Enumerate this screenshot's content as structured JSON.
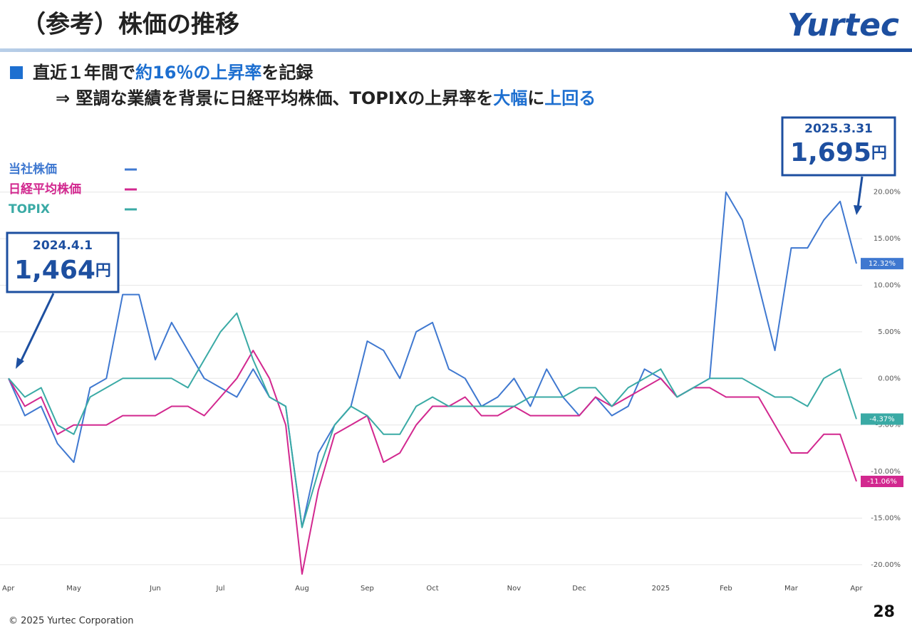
{
  "header": {
    "title": "（参考）株価の推移",
    "logo": "Yurtec"
  },
  "headline": {
    "parts": [
      "直近１年間で",
      "約16％の上昇率",
      "を記録"
    ]
  },
  "subline": {
    "parts": [
      "⇒ 堅調な業績を背景に日経平均株価、TOPIXの上昇率を",
      "大幅",
      "に",
      "上回る"
    ]
  },
  "callouts": [
    {
      "date": "2024.4.1",
      "price": "1,464",
      "unit": "円"
    },
    {
      "date": "2025.3.31",
      "price": "1,695",
      "unit": "円"
    }
  ],
  "footer": {
    "copyright": "© 2025 Yurtec Corporation",
    "page": "28"
  },
  "chart_data": {
    "type": "line",
    "categories": [
      "Apr",
      null,
      null,
      null,
      "May",
      null,
      null,
      null,
      null,
      "Jun",
      null,
      null,
      null,
      "Jul",
      null,
      null,
      null,
      null,
      "Aug",
      null,
      null,
      null,
      "Sep",
      null,
      null,
      null,
      "Oct",
      null,
      null,
      null,
      null,
      "Nov",
      null,
      null,
      null,
      "Dec",
      null,
      null,
      null,
      null,
      "2025",
      null,
      null,
      null,
      "Feb",
      null,
      null,
      null,
      "Mar",
      null,
      null,
      null,
      "Apr"
    ],
    "series": [
      {
        "name": "当社株価",
        "color": "#3f78d0",
        "last_label": "12.32%",
        "values": [
          0,
          -4,
          -3,
          -7,
          -9,
          -1,
          0,
          9,
          9,
          2,
          6,
          3,
          0,
          -1,
          -2,
          1,
          -2,
          -3,
          -16,
          -8,
          -5,
          -3,
          4,
          3,
          0,
          5,
          6,
          1,
          0,
          -3,
          -2,
          0,
          -3,
          1,
          -2,
          -4,
          -2,
          -4,
          -3,
          1,
          0,
          -2,
          -1,
          0,
          20,
          17,
          10,
          3,
          14,
          14,
          17,
          19,
          12.32
        ]
      },
      {
        "name": "日経平均株価",
        "color": "#d2288f",
        "last_label": "-11.06%",
        "values": [
          0,
          -3,
          -2,
          -6,
          -5,
          -5,
          -5,
          -4,
          -4,
          -4,
          -3,
          -3,
          -4,
          -2,
          0,
          3,
          0,
          -5,
          -21,
          -12,
          -6,
          -5,
          -4,
          -9,
          -8,
          -5,
          -3,
          -3,
          -2,
          -4,
          -4,
          -3,
          -4,
          -4,
          -4,
          -4,
          -2,
          -3,
          -2,
          -1,
          0,
          -2,
          -1,
          -1,
          -2,
          -2,
          -2,
          -5,
          -8,
          -8,
          -6,
          -6,
          -11.06
        ]
      },
      {
        "name": "TOPIX",
        "color": "#3aaaa5",
        "last_label": "-4.37%",
        "values": [
          0,
          -2,
          -1,
          -5,
          -6,
          -2,
          -1,
          0,
          0,
          0,
          0,
          -1,
          2,
          5,
          7,
          2,
          -2,
          -3,
          -16,
          -10,
          -5,
          -3,
          -4,
          -6,
          -6,
          -3,
          -2,
          -3,
          -3,
          -3,
          -3,
          -3,
          -2,
          -2,
          -2,
          -1,
          -1,
          -3,
          -1,
          0,
          1,
          -2,
          -1,
          0,
          0,
          0,
          -1,
          -2,
          -2,
          -3,
          0,
          1,
          -4.37
        ]
      }
    ],
    "ylim": [
      -21,
      22.5
    ],
    "yticks": [
      {
        "value": -20,
        "label": "-20.00%"
      },
      {
        "value": -15,
        "label": "-15.00%"
      },
      {
        "value": -10,
        "label": "-10.00%"
      },
      {
        "value": -5,
        "label": "-5.00%"
      },
      {
        "value": 0,
        "label": "0.00%"
      },
      {
        "value": 5,
        "label": "5.00%"
      },
      {
        "value": 10,
        "label": "10.00%"
      },
      {
        "value": 15,
        "label": "15.00%"
      },
      {
        "value": 20,
        "label": "20.00%"
      }
    ],
    "grid": true
  }
}
